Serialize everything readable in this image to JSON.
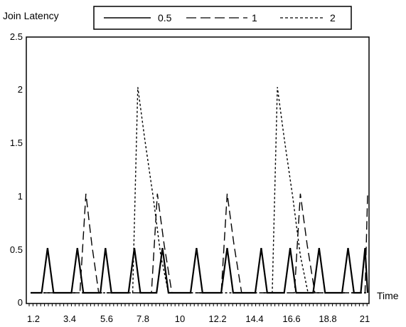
{
  "chart_data": {
    "type": "line",
    "ylabel": "Join Latency",
    "xlabel": "Time",
    "ylim": [
      0,
      2.5
    ],
    "xlim": [
      1.2,
      21
    ],
    "yticks": [
      "0",
      "0.5",
      "1",
      "1.5",
      "2",
      "2.5"
    ],
    "xticks": [
      "1.2",
      "3.4",
      "5.6",
      "7.8",
      "10",
      "12.2",
      "14.4",
      "16.6",
      "18.8",
      "21"
    ],
    "legend_position": "top",
    "grid": false,
    "series": [
      {
        "name": "0.5",
        "style": "solid",
        "color": "#000000",
        "x": [
          1.2,
          1.85,
          2.2,
          2.55,
          2.9,
          3.6,
          3.95,
          4.3,
          4.6,
          5.3,
          5.6,
          5.95,
          6.4,
          6.95,
          7.3,
          7.65,
          7.95,
          8.6,
          8.95,
          9.3,
          9.7,
          10.6,
          10.95,
          11.3,
          11.7,
          12.4,
          12.75,
          13.1,
          13.5,
          14.4,
          14.75,
          15.1,
          15.4,
          16.1,
          16.45,
          16.8,
          17.1,
          17.8,
          18.15,
          18.5,
          18.8,
          19.5,
          19.85,
          20.2,
          20.6,
          20.85,
          21
        ],
        "y": [
          0.1,
          0.1,
          0.52,
          0.1,
          0.1,
          0.1,
          0.52,
          0.1,
          0.1,
          0.1,
          0.52,
          0.1,
          0.1,
          0.1,
          0.52,
          0.1,
          0.1,
          0.1,
          0.52,
          0.1,
          0.1,
          0.1,
          0.52,
          0.1,
          0.1,
          0.1,
          0.52,
          0.1,
          0.1,
          0.1,
          0.52,
          0.1,
          0.1,
          0.1,
          0.52,
          0.1,
          0.1,
          0.1,
          0.52,
          0.1,
          0.1,
          0.1,
          0.52,
          0.1,
          0.1,
          0.52,
          0.1
        ]
      },
      {
        "name": "1",
        "style": "dashed",
        "color": "#000000",
        "x": [
          1.2,
          4.1,
          4.45,
          4.8,
          5.2,
          5.7,
          8.3,
          8.65,
          9.05,
          9.5,
          10.0,
          12.4,
          12.75,
          13.15,
          13.6,
          14.0,
          16.7,
          17.05,
          17.45,
          17.9,
          18.4,
          20.85,
          21
        ],
        "y": [
          0.1,
          0.1,
          1.03,
          0.55,
          0.1,
          0.1,
          0.1,
          1.03,
          0.55,
          0.1,
          0.1,
          0.1,
          1.03,
          0.55,
          0.1,
          0.1,
          0.1,
          1.03,
          0.55,
          0.1,
          0.1,
          0.1,
          1.03
        ]
      },
      {
        "name": "2",
        "style": "dotted",
        "color": "#000000",
        "x": [
          1.2,
          7.2,
          7.5,
          7.9,
          8.4,
          8.85,
          9.3,
          11.5,
          15.4,
          15.7,
          16.1,
          16.6,
          17.05,
          17.5,
          19.2,
          21
        ],
        "y": [
          0.1,
          0.1,
          2.03,
          1.55,
          1.0,
          0.45,
          0.1,
          0.1,
          0.1,
          2.03,
          1.55,
          1.0,
          0.45,
          0.1,
          0.1,
          0.1
        ]
      }
    ]
  }
}
